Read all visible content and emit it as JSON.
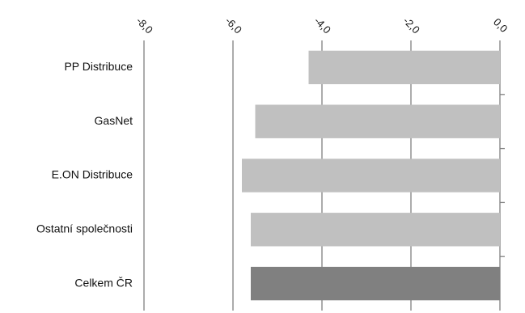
{
  "chart_data": {
    "type": "bar",
    "orientation": "horizontal",
    "title": "",
    "xlabel": "",
    "ylabel": "",
    "x_axis_position": "top",
    "grid": true,
    "legend": "none",
    "xlim": [
      -8.0,
      0.0
    ],
    "tick_values": [
      -8.0,
      -6.0,
      -4.0,
      -2.0,
      0.0
    ],
    "tick_labels": [
      "-8,0",
      "-6,0",
      "-4,0",
      "-2,0",
      "0,0"
    ],
    "categories": [
      "PP Distribuce",
      "GasNet",
      "E.ON Distribuce",
      "Ostatní společnosti",
      "Celkem ČR"
    ],
    "values": [
      -4.3,
      -5.5,
      -5.8,
      -5.6,
      -5.6
    ],
    "bar_colors": [
      "#c0c0c0",
      "#c0c0c0",
      "#c0c0c0",
      "#c0c0c0",
      "#808080"
    ],
    "gridline_color": "#7f7f7f"
  }
}
